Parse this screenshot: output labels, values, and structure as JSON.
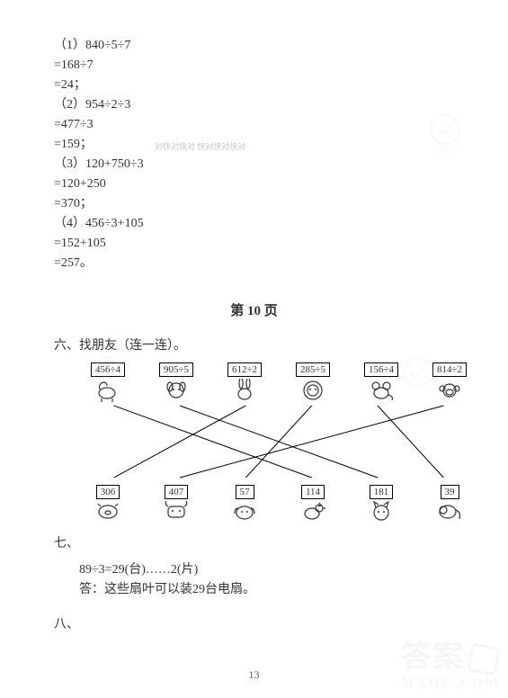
{
  "calc": {
    "lines": [
      "（1）840÷5÷7",
      "=168÷7",
      "=24；",
      "（2）954÷2÷3",
      "=477÷3",
      "=159；",
      "（3）120+750÷3",
      "=120+250",
      "=370；",
      "（4）456÷3+105",
      "=152+105",
      "=257。"
    ]
  },
  "heading": "第 10 页",
  "section6": {
    "label": "六、找朋友（连一连）。",
    "top": [
      {
        "expr": "456÷4",
        "name": "horse"
      },
      {
        "expr": "905÷5",
        "name": "dog"
      },
      {
        "expr": "612÷2",
        "name": "rabbit"
      },
      {
        "expr": "285÷5",
        "name": "lion"
      },
      {
        "expr": "156÷4",
        "name": "mouse"
      },
      {
        "expr": "814÷2",
        "name": "monkey"
      }
    ],
    "bottom": [
      {
        "value": "306",
        "name": "pig"
      },
      {
        "value": "407",
        "name": "cow"
      },
      {
        "value": "57",
        "name": "dog2"
      },
      {
        "value": "114",
        "name": "rooster"
      },
      {
        "value": "181",
        "name": "cat"
      },
      {
        "value": "39",
        "name": "elephant"
      }
    ],
    "edges": [
      {
        "from": 0,
        "to": 3
      },
      {
        "from": 1,
        "to": 4
      },
      {
        "from": 2,
        "to": 0
      },
      {
        "from": 3,
        "to": 2
      },
      {
        "from": 4,
        "to": 5
      },
      {
        "from": 5,
        "to": 1
      }
    ],
    "line_color": "#000000",
    "line_width": 1
  },
  "section7": {
    "label": "七、",
    "line1": "89÷3=29(台)……2(片)",
    "line2": "答：这些扇叶可以装29台电扇。"
  },
  "section8": {
    "label": "八、"
  },
  "page_number": "13",
  "watermarks": {
    "rt_text": "快对",
    "small_text": "对快对快对\n快对快对快对"
  },
  "style": {
    "bg": "#ffffff",
    "text": "#333333",
    "box_border": "#000000",
    "wm_color": "#d8d8d8"
  }
}
